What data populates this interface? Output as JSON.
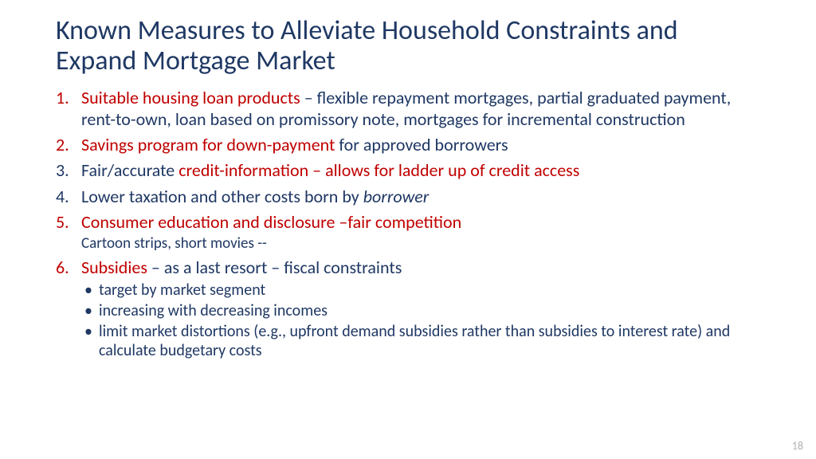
{
  "colors": {
    "blue": "#1f3864",
    "red": "#c00000",
    "pagenum": "#b0b0b0",
    "background": "#ffffff"
  },
  "typography": {
    "title_fontsize": 34,
    "body_fontsize": 22,
    "sub_fontsize": 19,
    "bullet_fontsize": 20,
    "pagenum_fontsize": 14,
    "family": "Calibri"
  },
  "title": "Known Measures to Alleviate Household Constraints and Expand Mortgage Market",
  "items": [
    {
      "number_color": "red",
      "spans": [
        {
          "text": "Suitable housing loan products ",
          "color": "red"
        },
        {
          "text": "– flexible repayment mortgages, partial graduated payment, rent-to-own, loan based on promissory note, mortgages for incremental construction",
          "color": "blue"
        }
      ]
    },
    {
      "number_color": "red",
      "spans": [
        {
          "text": "Savings program for down-payment ",
          "color": "red"
        },
        {
          "text": "for approved borrowers",
          "color": "blue"
        }
      ]
    },
    {
      "number_color": "blue",
      "spans": [
        {
          "text": "Fair/accurate ",
          "color": "blue"
        },
        {
          "text": "credit-information – allows for ladder up of credit access",
          "color": "red"
        }
      ]
    },
    {
      "number_color": "blue",
      "spans": [
        {
          "text": "Lower taxation and other costs born by ",
          "color": "blue"
        },
        {
          "text": "borrower",
          "color": "blue",
          "italic": true
        }
      ]
    },
    {
      "number_color": "red",
      "spans": [
        {
          "text": "Consumer education and disclosure –fair competition",
          "color": "red"
        }
      ],
      "subline": "Cartoon strips, short movies --"
    },
    {
      "number_color": "red",
      "spans": [
        {
          "text": "Subsidies ",
          "color": "red"
        },
        {
          "text": "– as a last resort – fiscal constraints",
          "color": "blue"
        }
      ],
      "bullets": [
        "target by market segment",
        "increasing with decreasing incomes",
        "limit market distortions (e.g., upfront demand subsidies rather than subsidies to interest rate) and calculate budgetary costs"
      ]
    }
  ],
  "page_number": "18"
}
